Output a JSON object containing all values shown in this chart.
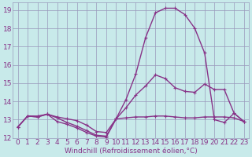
{
  "xlabel": "Windchill (Refroidissement éolien,°C)",
  "bg_color": "#c8eaea",
  "grid_color": "#9999bb",
  "line_color": "#883388",
  "xlim": [
    -0.5,
    23.5
  ],
  "ylim": [
    12,
    19.4
  ],
  "yticks": [
    12,
    13,
    14,
    15,
    16,
    17,
    18,
    19
  ],
  "xticks": [
    0,
    1,
    2,
    3,
    4,
    5,
    6,
    7,
    8,
    9,
    10,
    11,
    12,
    13,
    14,
    15,
    16,
    17,
    18,
    19,
    20,
    21,
    22,
    23
  ],
  "line1_x": [
    0,
    1,
    2,
    3,
    4,
    5,
    6,
    7,
    8,
    9,
    10,
    11,
    12,
    13,
    14,
    15,
    16,
    17,
    18,
    19,
    20,
    21,
    22,
    23
  ],
  "line1_y": [
    12.6,
    13.2,
    13.15,
    13.3,
    13.15,
    13.05,
    12.95,
    12.7,
    12.35,
    12.3,
    13.05,
    13.1,
    13.15,
    13.15,
    13.2,
    13.2,
    13.15,
    13.1,
    13.1,
    13.15,
    13.15,
    13.15,
    13.1,
    12.9
  ],
  "line2_x": [
    0,
    1,
    2,
    3,
    4,
    5,
    6,
    7,
    8,
    9,
    10,
    11,
    12,
    13,
    14,
    15,
    16,
    17,
    18,
    19,
    20,
    21,
    22,
    23
  ],
  "line2_y": [
    12.6,
    13.2,
    13.15,
    13.3,
    12.9,
    12.75,
    12.55,
    12.3,
    12.1,
    12.05,
    13.05,
    13.65,
    14.35,
    14.85,
    15.45,
    15.25,
    14.75,
    14.55,
    14.5,
    14.95,
    14.65,
    14.65,
    13.35,
    12.9
  ],
  "line3_x": [
    0,
    1,
    2,
    3,
    4,
    5,
    6,
    7,
    8,
    9,
    10,
    11,
    12,
    13,
    14,
    15,
    16,
    17,
    18,
    19,
    20,
    21,
    22,
    23
  ],
  "line3_y": [
    12.6,
    13.2,
    13.2,
    13.3,
    13.1,
    12.85,
    12.65,
    12.4,
    12.15,
    12.1,
    13.05,
    14.1,
    15.5,
    17.5,
    18.85,
    19.1,
    19.1,
    18.75,
    18.0,
    16.65,
    13.0,
    12.85,
    13.35,
    12.9
  ],
  "font_color": "#883388",
  "axis_label_fontsize": 6.5,
  "tick_fontsize": 6.5,
  "linewidth": 1.0,
  "markersize": 3.5
}
